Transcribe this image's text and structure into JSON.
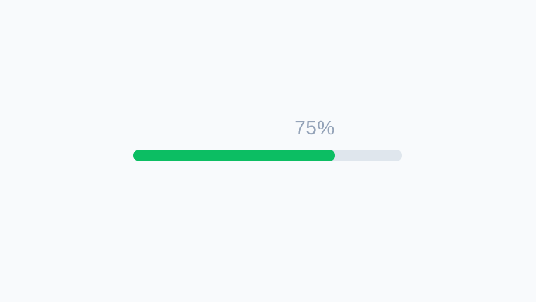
{
  "page": {
    "background_color": "#f8fafc"
  },
  "progress_bar": {
    "label": "75%",
    "percent": 75,
    "fill_color": "#0cbe63",
    "track_color": "#dfe6ed",
    "label_color": "#94a3b8"
  }
}
